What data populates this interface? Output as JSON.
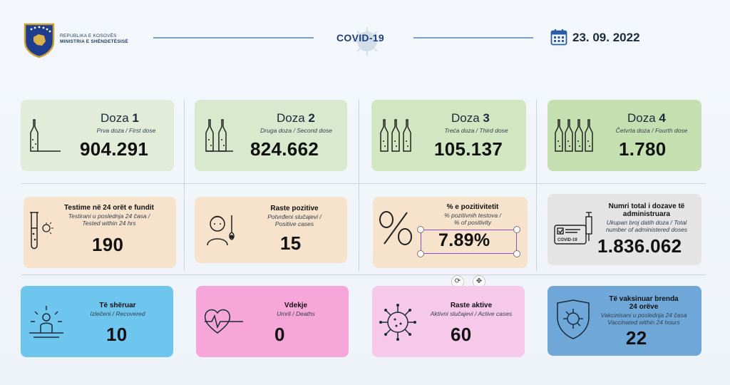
{
  "header": {
    "ministry_line1": "REPUBLIKA E KOSOVËS",
    "ministry_line2": "MINISTRIA E SHËNDETËSISË",
    "title": "COVID-19",
    "date": "23. 09. 2022"
  },
  "doses": [
    {
      "label": "Doza",
      "number": "1",
      "sub": "Prva doza / First dose",
      "value": "904.291"
    },
    {
      "label": "Doza",
      "number": "2",
      "sub": "Druga doza / Second dose",
      "value": "824.662"
    },
    {
      "label": "Doza",
      "number": "3",
      "sub": "Treća doza / Third dose",
      "value": "105.137"
    },
    {
      "label": "Doza",
      "number": "4",
      "sub": "Četvrta doza / Fourth dose",
      "value": "1.780"
    }
  ],
  "row2": {
    "tests": {
      "title": "Testime në 24 orët e fundit",
      "sub1": "Testirani u poslednja 24 časa /",
      "sub2": "Tested within 24 hrs",
      "value": "190"
    },
    "positive": {
      "title": "Raste pozitive",
      "sub1": "Potvrđeni slučajevi /",
      "sub2": "Positive cases",
      "value": "15"
    },
    "positivity": {
      "title": "% e pozitivitetit",
      "sub1": "% pozitivnih testova /",
      "sub2": "% of positivity",
      "value": "7.89%"
    },
    "total": {
      "title1": "Numri total i dozave të",
      "title2": "administruara",
      "sub1": "Ukupan broj datih doza / Total",
      "sub2": "number of administered doses",
      "value": "1.836.062",
      "cert_label": "COVID-19"
    }
  },
  "row3": {
    "recovered": {
      "title": "Të shëruar",
      "sub": "Izlečeni / Recovered",
      "value": "10"
    },
    "deaths": {
      "title": "Vdekje",
      "sub": "Umrli / Deaths",
      "value": "0"
    },
    "active": {
      "title": "Raste aktive",
      "sub": "Aktivni slučajevi / Active cases",
      "value": "60"
    },
    "vaccinated": {
      "title1": "Të vaksinuar brenda",
      "title2": "24 orëve",
      "sub1": "Vakcinisani u poslednja 24 časa",
      "sub2": "Vaccinated within 24 hours",
      "value": "22"
    }
  },
  "colors": {
    "accent_blue": "#1d3f7a",
    "selection": "#8e4fc4"
  },
  "icons": [
    "kosovo-coat-of-arms-icon",
    "calendar-icon",
    "virus-icon",
    "ampoule-icon",
    "test-tube-icon",
    "sick-person-icon",
    "percent-icon",
    "certificate-syringe-icon",
    "sunrise-person-icon",
    "heartbeat-icon",
    "shield-virus-icon",
    "rotate-icon",
    "move-icon"
  ]
}
